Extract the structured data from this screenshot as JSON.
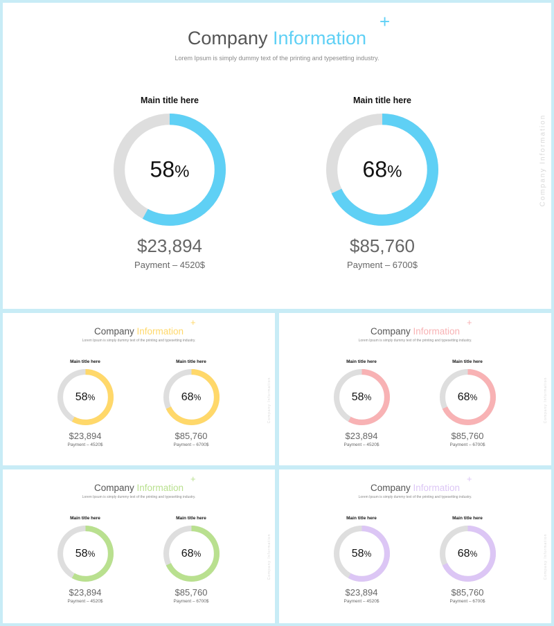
{
  "slides": [
    {
      "title_main": "Company",
      "title_accent": "Information",
      "plus": "+",
      "subtitle": "Lorem Ipsum is simply dummy text of the printing and typesetting industry.",
      "vertical_label": "Company Information",
      "accent_color": "#5fd0f5",
      "metrics": [
        {
          "title": "Main title here",
          "percent": 58,
          "percent_num": "58",
          "percent_sign": "%",
          "amount": "$23,894",
          "payment": "Payment – 4520$"
        },
        {
          "title": "Main title here",
          "percent": 68,
          "percent_num": "68",
          "percent_sign": "%",
          "amount": "$85,760",
          "payment": "Payment – 6700$"
        }
      ]
    },
    {
      "title_main": "Company",
      "title_accent": "Information",
      "plus": "+",
      "subtitle": "Lorem Ipsum is simply dummy text of the printing and typesetting industry.",
      "vertical_label": "Company Information",
      "accent_color": "#ffd86a",
      "metrics": [
        {
          "title": "Main title here",
          "percent": 58,
          "percent_num": "58",
          "percent_sign": "%",
          "amount": "$23,894",
          "payment": "Payment – 4520$"
        },
        {
          "title": "Main title here",
          "percent": 68,
          "percent_num": "68",
          "percent_sign": "%",
          "amount": "$85,760",
          "payment": "Payment – 6700$"
        }
      ]
    },
    {
      "title_main": "Company",
      "title_accent": "Information",
      "plus": "+",
      "subtitle": "Lorem Ipsum is simply dummy text of the printing and typesetting industry.",
      "vertical_label": "Company Information",
      "accent_color": "#f8b2b4",
      "metrics": [
        {
          "title": "Main title here",
          "percent": 58,
          "percent_num": "58",
          "percent_sign": "%",
          "amount": "$23,894",
          "payment": "Payment – 4520$"
        },
        {
          "title": "Main title here",
          "percent": 68,
          "percent_num": "68",
          "percent_sign": "%",
          "amount": "$85,760",
          "payment": "Payment – 6700$"
        }
      ]
    },
    {
      "title_main": "Company",
      "title_accent": "Information",
      "plus": "+",
      "subtitle": "Lorem Ipsum is simply dummy text of the printing and typesetting industry.",
      "vertical_label": "Company Information",
      "accent_color": "#b9e08f",
      "metrics": [
        {
          "title": "Main title here",
          "percent": 58,
          "percent_num": "58",
          "percent_sign": "%",
          "amount": "$23,894",
          "payment": "Payment – 4520$"
        },
        {
          "title": "Main title here",
          "percent": 68,
          "percent_num": "68",
          "percent_sign": "%",
          "amount": "$85,760",
          "payment": "Payment – 6700$"
        }
      ]
    },
    {
      "title_main": "Company",
      "title_accent": "Information",
      "plus": "+",
      "subtitle": "Lorem Ipsum is simply dummy text of the printing and typesetting industry.",
      "vertical_label": "Company Information",
      "accent_color": "#dcc6f5",
      "metrics": [
        {
          "title": "Main title here",
          "percent": 58,
          "percent_num": "58",
          "percent_sign": "%",
          "amount": "$23,894",
          "payment": "Payment – 4520$"
        },
        {
          "title": "Main title here",
          "percent": 68,
          "percent_num": "68",
          "percent_sign": "%",
          "amount": "$85,760",
          "payment": "Payment – 6700$"
        }
      ]
    }
  ],
  "ring_track_color": "#dedede"
}
